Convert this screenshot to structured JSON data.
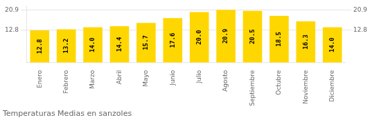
{
  "chart_data": {
    "type": "bar",
    "title": "Temperaturas Medias en sanzoles",
    "categories": [
      "Enero",
      "Febrero",
      "Marzo",
      "Abril",
      "Mayo",
      "Junio",
      "Julio",
      "Agosto",
      "Septiembre",
      "Octubre",
      "Noviembre",
      "Diciembre"
    ],
    "values": [
      12.8,
      13.2,
      14.0,
      14.4,
      15.7,
      17.6,
      20.0,
      20.9,
      20.5,
      18.5,
      16.3,
      14.0
    ],
    "value_labels": [
      "12.8",
      "13.2",
      "14.0",
      "14.4",
      "15.7",
      "17.6",
      "20.0",
      "20.9",
      "20.5",
      "18.5",
      "16.3",
      "14.0"
    ],
    "color": "#FFD700",
    "data_labels": true,
    "ylim": [
      0,
      22.5
    ],
    "yticks": [
      12.8,
      20.9
    ],
    "y2lim": [
      0,
      22.5
    ],
    "y2ticks": [
      12.8,
      20.9
    ],
    "grid": true
  }
}
